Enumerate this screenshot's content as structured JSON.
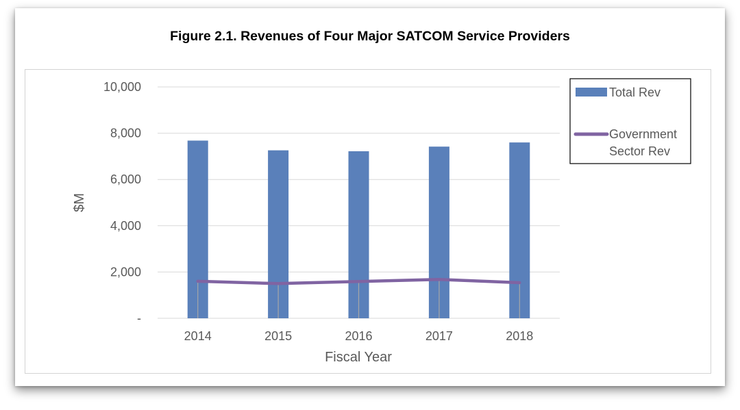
{
  "figure": {
    "title": "Figure 2.1. Revenues of Four Major SATCOM Service Providers"
  },
  "colors": {
    "bar": "#5a80ba",
    "line": "#8064a2",
    "grid": "#d9d9d9",
    "drop_line": "#a6a6a6"
  },
  "chart_data": {
    "type": "bar",
    "categories": [
      "2014",
      "2015",
      "2016",
      "2017",
      "2018"
    ],
    "series": [
      {
        "name": "Total Rev",
        "type": "bar",
        "values": [
          7680,
          7260,
          7220,
          7420,
          7600
        ]
      },
      {
        "name": "Government Sector Rev",
        "type": "line",
        "values": [
          1600,
          1500,
          1590,
          1680,
          1540
        ]
      }
    ],
    "xlabel": "Fiscal Year",
    "ylabel": "$M",
    "ylim": [
      0,
      10000
    ],
    "yticks": [
      0,
      2000,
      4000,
      6000,
      8000,
      10000
    ],
    "ytick_labels": [
      "-",
      "2,000",
      "4,000",
      "6,000",
      "8,000",
      "10,000"
    ],
    "legend_labels": [
      "Total Rev",
      "Government",
      "Sector Rev"
    ],
    "grid": true,
    "drop_lines": true,
    "legend_position": "top-right"
  }
}
